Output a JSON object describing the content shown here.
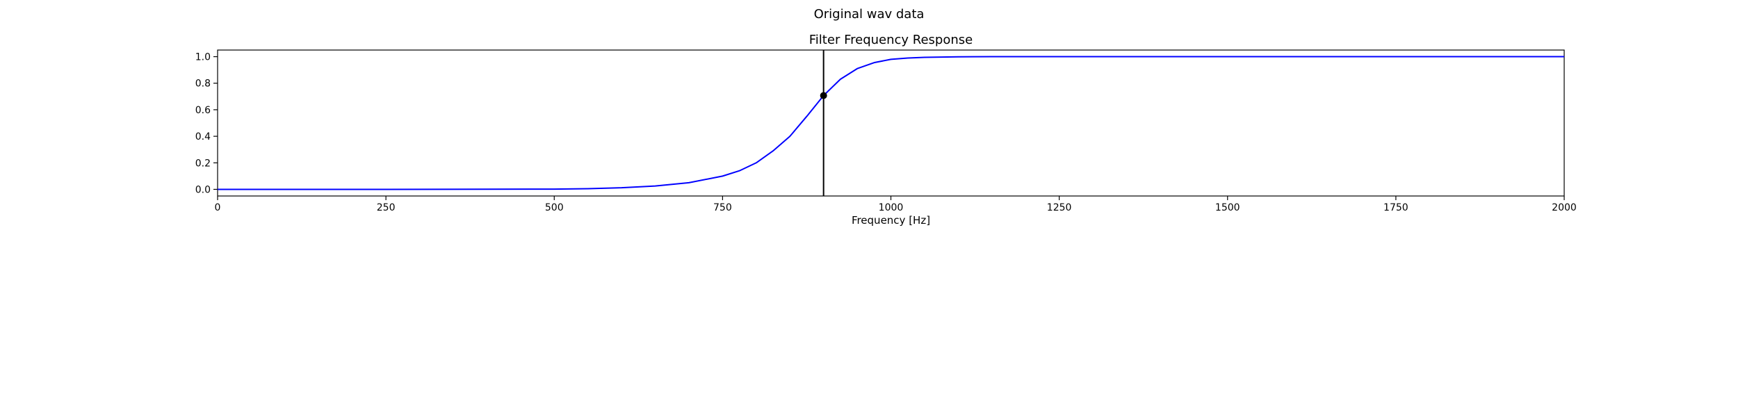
{
  "figure": {
    "suptitle": "Original wav data"
  },
  "chart_data": {
    "type": "line",
    "title": "Filter Frequency Response",
    "xlabel": "Frequency [Hz]",
    "ylabel": "",
    "xlim": [
      0,
      2000
    ],
    "ylim": [
      -0.05,
      1.05
    ],
    "x_ticks": [
      0,
      250,
      500,
      750,
      1000,
      1250,
      1500,
      1750,
      2000
    ],
    "y_ticks": [
      0.0,
      0.2,
      0.4,
      0.6,
      0.8,
      1.0
    ],
    "x_tick_labels": [
      "0",
      "250",
      "500",
      "750",
      "1000",
      "1250",
      "1500",
      "1750",
      "2000"
    ],
    "y_tick_labels": [
      "0.0",
      "0.2",
      "0.4",
      "0.6",
      "0.8",
      "1.0"
    ],
    "grid": false,
    "series": [
      {
        "color": "#0000ff",
        "x": [
          0,
          250,
          500,
          550,
          600,
          650,
          700,
          750,
          775,
          800,
          825,
          850,
          875,
          900,
          925,
          950,
          975,
          1000,
          1025,
          1050,
          1100,
          1150,
          1250,
          1500,
          1750,
          2000
        ],
        "y": [
          0.0,
          0.0,
          0.002,
          0.005,
          0.012,
          0.025,
          0.05,
          0.1,
          0.14,
          0.2,
          0.29,
          0.4,
          0.55,
          0.707,
          0.83,
          0.91,
          0.955,
          0.98,
          0.99,
          0.995,
          0.999,
          1.0,
          1.0,
          1.0,
          1.0,
          1.0
        ]
      }
    ],
    "cutoff_line": {
      "x": 900,
      "color": "#000000"
    },
    "cutoff_point": {
      "x": 900,
      "y": 0.707,
      "color": "#000000"
    }
  }
}
